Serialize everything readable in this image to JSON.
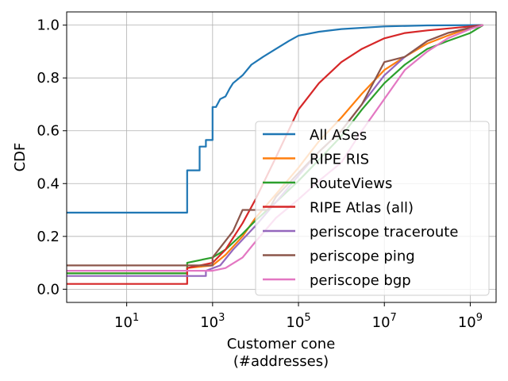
{
  "chart_data": {
    "type": "line",
    "xlabel_line1": "Customer cone",
    "xlabel_line2": "(#addresses)",
    "ylabel": "CDF",
    "xscale": "log",
    "xlim": [
      0.4,
      4000000000
    ],
    "ylim": [
      -0.05,
      1.05
    ],
    "grid": true,
    "legend_position": "lower-right",
    "xticks": [
      {
        "value": 10,
        "base": "10",
        "exp": "1"
      },
      {
        "value": 1000,
        "base": "10",
        "exp": "3"
      },
      {
        "value": 100000,
        "base": "10",
        "exp": "5"
      },
      {
        "value": 10000000,
        "base": "10",
        "exp": "7"
      },
      {
        "value": 1000000000,
        "base": "10",
        "exp": "9"
      }
    ],
    "yticks": [
      {
        "value": 0.0,
        "label": "0.0"
      },
      {
        "value": 0.2,
        "label": "0.2"
      },
      {
        "value": 0.4,
        "label": "0.4"
      },
      {
        "value": 0.6,
        "label": "0.6"
      },
      {
        "value": 0.8,
        "label": "0.8"
      },
      {
        "value": 1.0,
        "label": "1.0"
      }
    ],
    "series": [
      {
        "name": "All ASes",
        "color": "#1f77b4",
        "points": [
          [
            0.4,
            0.29
          ],
          [
            256,
            0.29
          ],
          [
            256,
            0.45
          ],
          [
            500,
            0.45
          ],
          [
            500,
            0.54
          ],
          [
            700,
            0.54
          ],
          [
            700,
            0.565
          ],
          [
            1000,
            0.565
          ],
          [
            1000,
            0.69
          ],
          [
            1200,
            0.69
          ],
          [
            1500,
            0.72
          ],
          [
            2000,
            0.73
          ],
          [
            2500,
            0.76
          ],
          [
            3000,
            0.78
          ],
          [
            5000,
            0.81
          ],
          [
            8000,
            0.85
          ],
          [
            15000,
            0.88
          ],
          [
            30000,
            0.91
          ],
          [
            60000,
            0.94
          ],
          [
            100000,
            0.96
          ],
          [
            300000,
            0.975
          ],
          [
            1000000,
            0.985
          ],
          [
            10000000,
            0.995
          ],
          [
            100000000,
            0.999
          ],
          [
            2000000000,
            1.0
          ]
        ]
      },
      {
        "name": "RIPE RIS",
        "color": "#ff7f0e",
        "points": [
          [
            0.4,
            0.06
          ],
          [
            256,
            0.06
          ],
          [
            256,
            0.08
          ],
          [
            1000,
            0.09
          ],
          [
            2000,
            0.13
          ],
          [
            5000,
            0.2
          ],
          [
            10000,
            0.27
          ],
          [
            30000,
            0.36
          ],
          [
            100000,
            0.46
          ],
          [
            300000,
            0.56
          ],
          [
            1000000,
            0.65
          ],
          [
            3000000,
            0.74
          ],
          [
            10000000,
            0.83
          ],
          [
            30000000,
            0.88
          ],
          [
            100000000,
            0.93
          ],
          [
            300000000,
            0.96
          ],
          [
            1000000000,
            0.99
          ],
          [
            2000000000,
            1.0
          ]
        ]
      },
      {
        "name": "RouteViews",
        "color": "#2ca02c",
        "points": [
          [
            0.4,
            0.06
          ],
          [
            256,
            0.06
          ],
          [
            256,
            0.1
          ],
          [
            1000,
            0.12
          ],
          [
            2000,
            0.15
          ],
          [
            5000,
            0.21
          ],
          [
            10000,
            0.26
          ],
          [
            30000,
            0.33
          ],
          [
            100000,
            0.41
          ],
          [
            300000,
            0.49
          ],
          [
            1000000,
            0.58
          ],
          [
            3000000,
            0.68
          ],
          [
            10000000,
            0.78
          ],
          [
            30000000,
            0.85
          ],
          [
            100000000,
            0.91
          ],
          [
            300000000,
            0.94
          ],
          [
            1000000000,
            0.97
          ],
          [
            2000000000,
            1.0
          ]
        ]
      },
      {
        "name": "RIPE Atlas (all)",
        "color": "#d62728",
        "points": [
          [
            0.4,
            0.02
          ],
          [
            256,
            0.02
          ],
          [
            256,
            0.08
          ],
          [
            1000,
            0.1
          ],
          [
            2000,
            0.15
          ],
          [
            5000,
            0.25
          ],
          [
            10000,
            0.34
          ],
          [
            30000,
            0.5
          ],
          [
            100000,
            0.68
          ],
          [
            300000,
            0.78
          ],
          [
            1000000,
            0.86
          ],
          [
            3000000,
            0.91
          ],
          [
            10000000,
            0.95
          ],
          [
            30000000,
            0.97
          ],
          [
            100000000,
            0.98
          ],
          [
            1000000000,
            0.995
          ],
          [
            2000000000,
            1.0
          ]
        ]
      },
      {
        "name": "periscope traceroute",
        "color": "#9467bd",
        "points": [
          [
            0.4,
            0.05
          ],
          [
            700,
            0.05
          ],
          [
            700,
            0.07
          ],
          [
            1500,
            0.09
          ],
          [
            3000,
            0.15
          ],
          [
            10000,
            0.24
          ],
          [
            30000,
            0.33
          ],
          [
            100000,
            0.43
          ],
          [
            300000,
            0.52
          ],
          [
            1000000,
            0.6
          ],
          [
            3000000,
            0.7
          ],
          [
            10000000,
            0.81
          ],
          [
            30000000,
            0.88
          ],
          [
            100000000,
            0.94
          ],
          [
            300000000,
            0.97
          ],
          [
            1000000000,
            0.99
          ],
          [
            2000000000,
            1.0
          ]
        ]
      },
      {
        "name": "periscope ping",
        "color": "#8c564b",
        "points": [
          [
            0.4,
            0.09
          ],
          [
            1000,
            0.09
          ],
          [
            1000,
            0.12
          ],
          [
            3000,
            0.22
          ],
          [
            5000,
            0.3
          ],
          [
            20000,
            0.3
          ],
          [
            30000,
            0.35
          ],
          [
            100000,
            0.44
          ],
          [
            300000,
            0.52
          ],
          [
            1000000,
            0.6
          ],
          [
            3000000,
            0.7
          ],
          [
            10000000,
            0.86
          ],
          [
            30000000,
            0.88
          ],
          [
            100000000,
            0.94
          ],
          [
            300000000,
            0.97
          ],
          [
            1000000000,
            0.99
          ],
          [
            2000000000,
            1.0
          ]
        ]
      },
      {
        "name": "periscope bgp",
        "color": "#e377c2",
        "points": [
          [
            0.4,
            0.07
          ],
          [
            1000,
            0.07
          ],
          [
            2000,
            0.08
          ],
          [
            5000,
            0.12
          ],
          [
            10000,
            0.18
          ],
          [
            30000,
            0.27
          ],
          [
            100000,
            0.34
          ],
          [
            300000,
            0.41
          ],
          [
            1000000,
            0.48
          ],
          [
            3000000,
            0.6
          ],
          [
            10000000,
            0.72
          ],
          [
            30000000,
            0.83
          ],
          [
            100000000,
            0.9
          ],
          [
            300000000,
            0.95
          ],
          [
            1000000000,
            0.985
          ],
          [
            2000000000,
            1.0
          ]
        ]
      }
    ]
  }
}
